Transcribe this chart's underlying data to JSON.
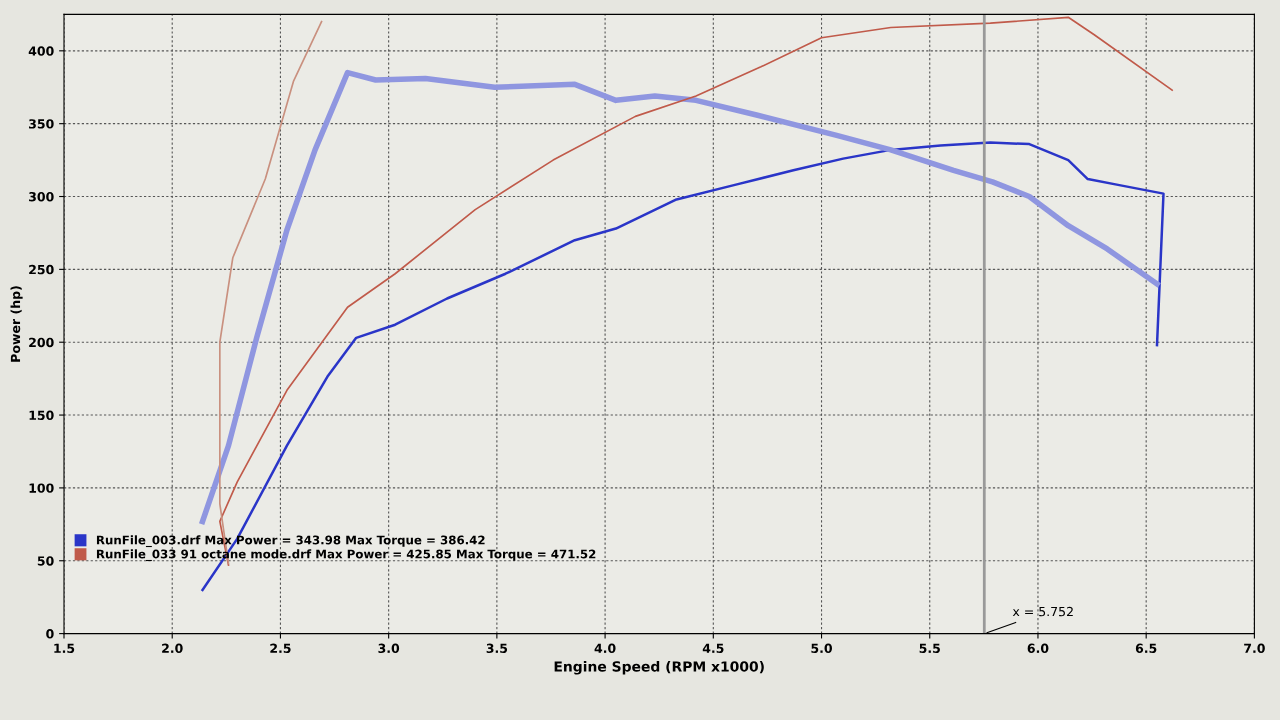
{
  "chart_data": {
    "type": "line",
    "xlabel": "Engine Speed (RPM x1000)",
    "ylabel": "Power (hp)",
    "xlim": [
      1.5,
      7.0
    ],
    "xticks": [
      {
        "value": 1.5,
        "label": "1.5"
      },
      {
        "value": 2.0,
        "label": "2.0"
      },
      {
        "value": 2.5,
        "label": "2.5"
      },
      {
        "value": 3.0,
        "label": "3.0"
      },
      {
        "value": 3.5,
        "label": "3.5"
      },
      {
        "value": 4.0,
        "label": "4.0"
      },
      {
        "value": 4.5,
        "label": "4.5"
      },
      {
        "value": 5.0,
        "label": "5.0"
      },
      {
        "value": 5.5,
        "label": "5.5"
      },
      {
        "value": 6.0,
        "label": "6.0"
      },
      {
        "value": 6.5,
        "label": "6.5"
      },
      {
        "value": 7.0,
        "label": "7.0"
      }
    ],
    "ylim": [
      0,
      425
    ],
    "yticks": [
      0,
      50,
      100,
      150,
      200,
      250,
      300,
      350,
      400
    ],
    "grid": true,
    "legend": "bottom left",
    "marker": "none",
    "line_style": "solid",
    "ref_lines": [
      {
        "axis": "x",
        "value": 5.752,
        "label": "x = 5.752",
        "color": "#999999"
      }
    ],
    "series": [
      {
        "name": "RunFile_003.drf Max Power = 343.98 Max Torque = 386.42",
        "color": "#2a35c8",
        "x": [
          2.14,
          2.3,
          2.53,
          2.72,
          2.85,
          3.03,
          3.27,
          3.54,
          3.86,
          4.05,
          4.33,
          4.6,
          4.87,
          5.1,
          5.32,
          5.55,
          5.78,
          5.96,
          6.14,
          6.23,
          6.37,
          6.58,
          6.55
        ],
        "values": [
          30,
          65,
          129,
          177,
          203,
          212,
          230,
          247,
          270,
          278,
          298,
          308,
          318,
          326,
          332,
          335,
          337,
          336,
          325,
          312,
          308,
          302,
          198
        ]
      },
      {
        "color": "#8f96e0",
        "x": [
          2.14,
          2.26,
          2.39,
          2.53,
          2.66,
          2.81,
          2.94,
          3.17,
          3.49,
          3.86,
          4.05,
          4.23,
          4.42,
          4.7,
          5.07,
          5.32,
          5.61,
          5.79,
          5.96,
          6.14,
          6.32,
          6.55
        ],
        "values": [
          77,
          129,
          203,
          277,
          332,
          385,
          380,
          381,
          375,
          377,
          366,
          369,
          366,
          356,
          342,
          332,
          318,
          310,
          300,
          280,
          264,
          240
        ]
      },
      {
        "name": "RunFile_033 91 octane mode.drf Max Power = 425.85 Max Torque = 471.52",
        "color": "#c05a4a",
        "x": [
          2.26,
          2.22,
          2.3,
          2.53,
          2.81,
          3.03,
          3.4,
          3.76,
          4.14,
          4.42,
          4.72,
          5.0,
          5.32,
          5.78,
          6.14,
          6.26,
          6.62
        ],
        "values": [
          47,
          77,
          104,
          167,
          224,
          247,
          291,
          325,
          355,
          369,
          389,
          409,
          416,
          419,
          423,
          411,
          373
        ]
      },
      {
        "color": "#c9907f",
        "x": [
          2.26,
          2.22,
          2.22,
          2.28,
          2.43,
          2.56,
          2.69
        ],
        "values": [
          48,
          89,
          200,
          258,
          312,
          379,
          420
        ]
      }
    ]
  }
}
